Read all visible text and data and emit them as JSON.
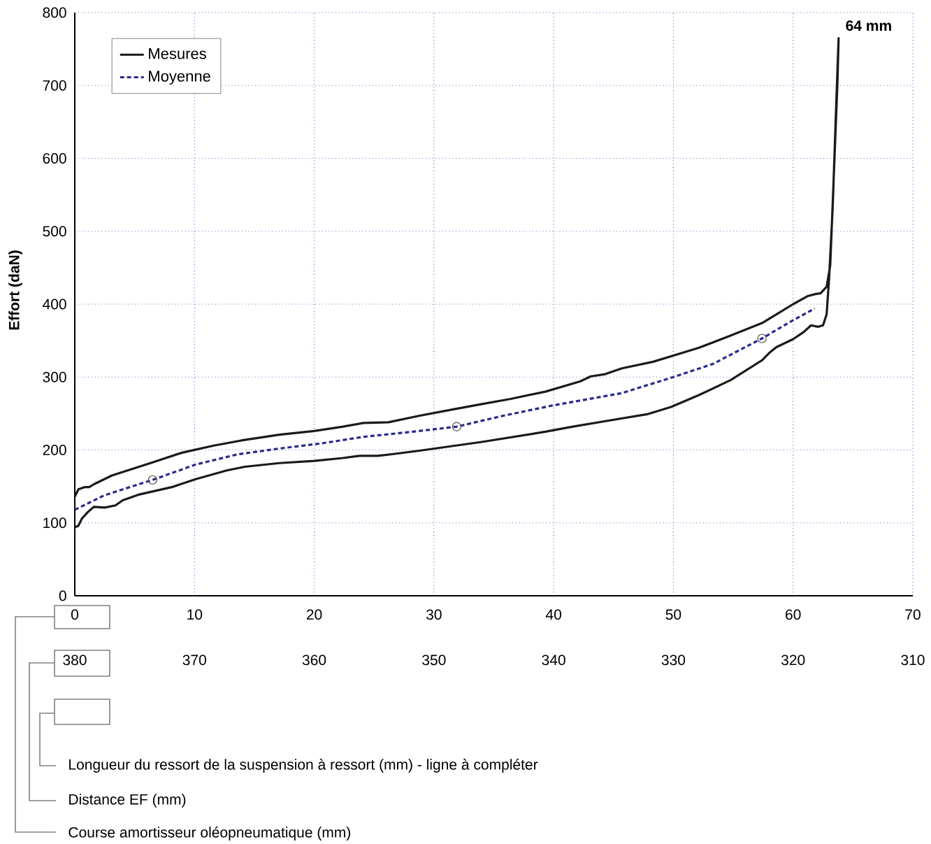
{
  "chart_data": {
    "type": "line",
    "ylabel": "Effort (daN)",
    "xlim": [
      0,
      70
    ],
    "xticks": [
      0,
      10,
      20,
      30,
      40,
      50,
      60,
      70
    ],
    "x2lim": [
      380,
      310
    ],
    "x2ticks": [
      380,
      370,
      360,
      350,
      340,
      330,
      320,
      310
    ],
    "ylim": [
      0,
      800
    ],
    "yticks": [
      0,
      100,
      200,
      300,
      400,
      500,
      600,
      700,
      800
    ],
    "grid": true,
    "legend": "top left",
    "series": [
      {
        "name": "Mesures",
        "color": "#1a1a1a",
        "line_style": "solid",
        "x": [
          0,
          0.3,
          0.8,
          1.2,
          1.6,
          3.1,
          6.5,
          8.9,
          11.6,
          13.9,
          17.1,
          20,
          22.4,
          24.1,
          26.2,
          28.8,
          31.7,
          34,
          36.4,
          39.3,
          42.2,
          43.1,
          44.3,
          45.7,
          48.3,
          52.1,
          54.8,
          57.4,
          58.6,
          60,
          61.2,
          61.9,
          62.3,
          62.8,
          63.1,
          63.4,
          63.7,
          63.8,
          63.6,
          63.3,
          63.0,
          62.8,
          62.5,
          62.1,
          61.5,
          60.9,
          60,
          58.6,
          58,
          57.4,
          54.8,
          52.1,
          49.8,
          47.8,
          44.5,
          41.6,
          39.3,
          34,
          28.8,
          26.4,
          25.3,
          23.8,
          22.4,
          20,
          17.1,
          14.2,
          12.7,
          10.1,
          8.1,
          5.4,
          4,
          3.4,
          2.5,
          1.6,
          1.1,
          0.6,
          0.3,
          0
        ],
        "values": [
          136,
          146,
          149,
          149,
          153,
          165,
          183,
          196,
          206,
          213,
          221,
          226,
          232,
          237,
          238,
          247,
          256,
          263,
          270,
          280,
          294,
          301,
          304,
          312,
          321,
          340,
          357,
          374,
          386,
          400,
          411,
          414,
          415,
          424,
          453,
          577,
          702,
          765,
          673,
          530,
          434,
          386,
          371,
          369,
          371,
          362,
          352,
          341,
          333,
          323,
          296,
          275,
          259,
          249,
          240,
          232,
          225,
          211,
          199,
          194,
          192,
          192,
          189,
          185,
          182,
          177,
          172,
          160,
          149,
          139,
          131,
          124,
          121,
          122,
          115,
          106,
          96,
          94
        ]
      },
      {
        "name": "Moyenne",
        "color": "#2a2a8c",
        "line_style": "dashed",
        "x": [
          0,
          2.5,
          6.5,
          10.1,
          13.6,
          17.1,
          20.6,
          24.1,
          28.2,
          31.9,
          35.8,
          39.9,
          45.7,
          49.8,
          53.3,
          57.4,
          60,
          61.8
        ],
        "values": [
          118,
          138,
          159,
          180,
          194,
          202,
          209,
          218,
          225,
          232,
          247,
          261,
          278,
          299,
          318,
          353,
          378,
          394
        ]
      },
      {
        "type": "scatter",
        "color": "#555555",
        "marker": "circle",
        "x": [
          6.5,
          31.9,
          57.4
        ],
        "values": [
          159,
          232,
          353
        ]
      }
    ],
    "annotations": [
      "Longueur du ressort de la suspension à ressort (mm)  - ligne à compléter",
      "Distance EF (mm)",
      "Course amortisseur oléopneumatique  (mm)",
      {
        "text": "64 mm",
        "x": 64,
        "y": 765
      }
    ]
  }
}
